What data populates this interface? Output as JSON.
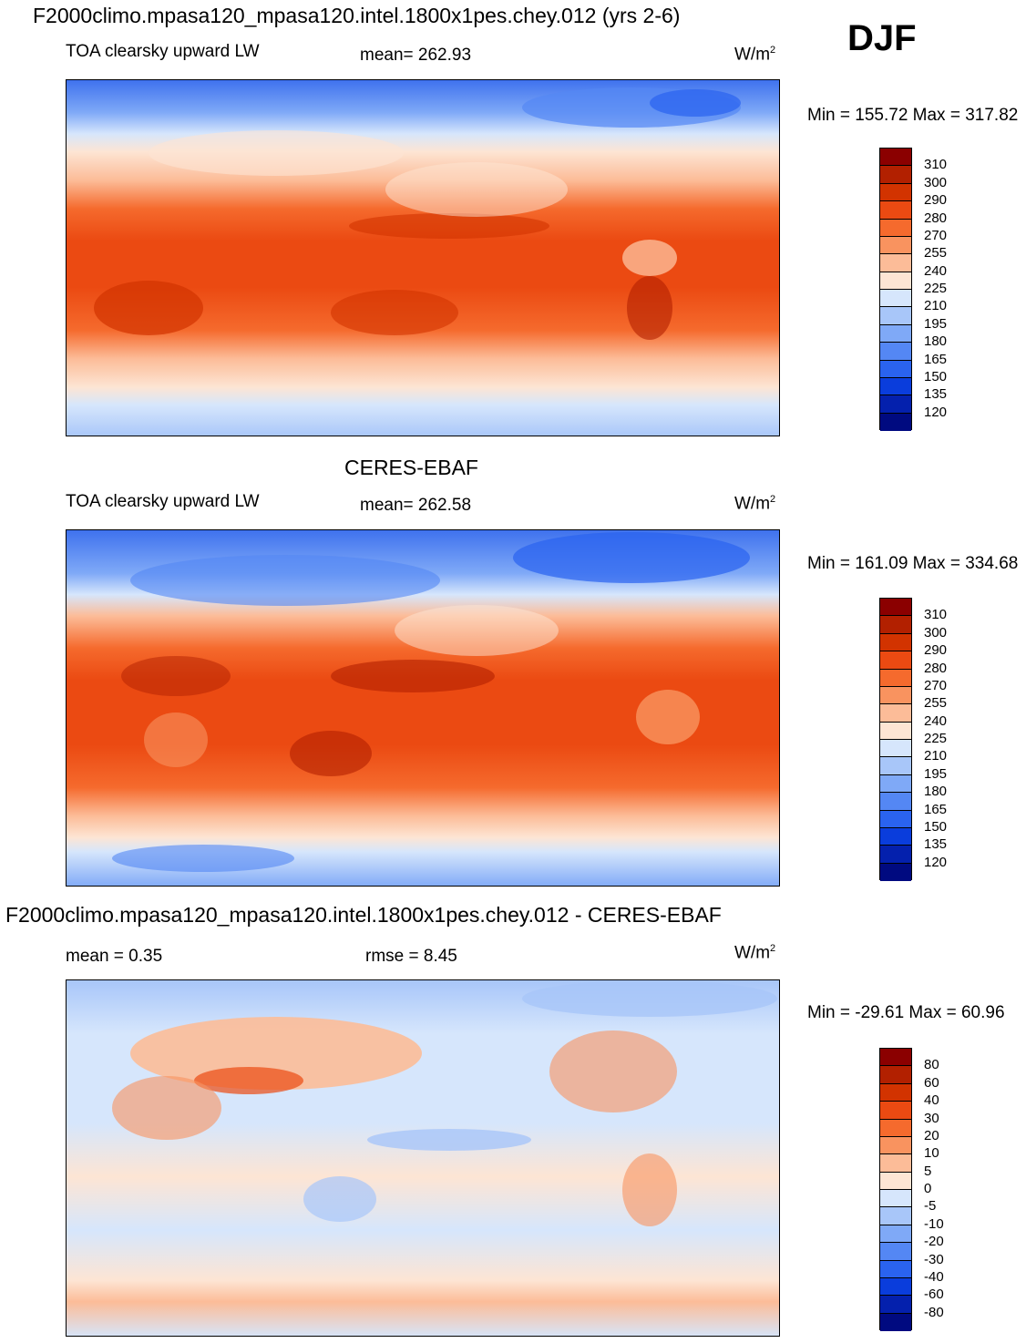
{
  "season": "DJF",
  "panels": [
    {
      "id": "model",
      "title": "F2000climo.mpasa120_mpasa120.intel.1800x1pes.chey.012 (yrs 2-6)",
      "variable": "TOA clearsky upward LW",
      "stat": "mean= 262.93",
      "units": "W/m",
      "units_exp": "2",
      "minmax": "Min = 155.72 Max = 317.82"
    },
    {
      "id": "obs",
      "title": "CERES-EBAF",
      "variable": "TOA clearsky upward LW",
      "stat": "mean= 262.58",
      "units": "W/m",
      "units_exp": "2",
      "minmax": "Min = 161.09 Max = 334.68"
    },
    {
      "id": "diff",
      "title": "F2000climo.mpasa120_mpasa120.intel.1800x1pes.chey.012 - CERES-EBAF",
      "stat": "mean =   0.35",
      "stat2": "rmse =   8.45",
      "units": "W/m",
      "units_exp": "2",
      "minmax": "Min = -29.61 Max =  60.96"
    }
  ],
  "colorbars": {
    "abs": {
      "labels": [
        "310",
        "300",
        "290",
        "280",
        "270",
        "255",
        "240",
        "225",
        "210",
        "195",
        "180",
        "165",
        "150",
        "135",
        "120"
      ],
      "colors": [
        "#8b0000",
        "#b22000",
        "#d23300",
        "#eb4a12",
        "#f56a2d",
        "#f9935f",
        "#fcbc98",
        "#fde5d4",
        "#d6e6fc",
        "#a8c6f9",
        "#7fa9f7",
        "#5487f4",
        "#2a63ef",
        "#0a3ddc",
        "#0420ad",
        "#000a80"
      ]
    },
    "diff": {
      "labels": [
        "80",
        "60",
        "40",
        "30",
        "20",
        "10",
        "5",
        "0",
        "-5",
        "-10",
        "-20",
        "-30",
        "-40",
        "-60",
        "-80"
      ],
      "colors": [
        "#8b0000",
        "#b22000",
        "#d23300",
        "#eb4a12",
        "#f56a2d",
        "#f9935f",
        "#fcbc98",
        "#fde5d4",
        "#d6e6fc",
        "#a8c6f9",
        "#7fa9f7",
        "#5487f4",
        "#2a63ef",
        "#0a3ddc",
        "#0420ad",
        "#000a80"
      ]
    }
  }
}
